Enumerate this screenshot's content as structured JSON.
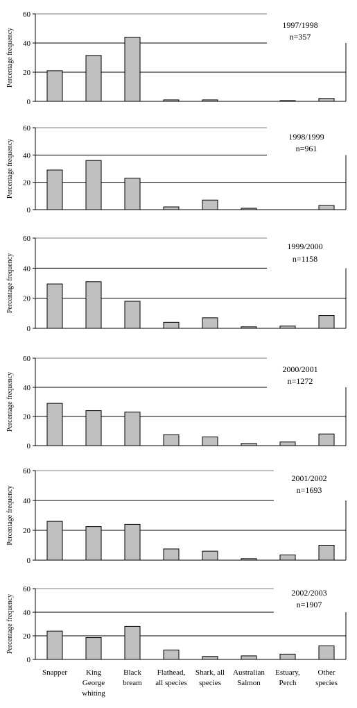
{
  "chart_data": [
    {
      "type": "bar",
      "title": "",
      "annotation": [
        "1997/1998",
        "n=357"
      ],
      "ylabel": "Percentage frequency",
      "ylim": [
        0,
        60
      ],
      "yticks": [
        0,
        20,
        40,
        60
      ],
      "grid": "horizontal",
      "bar_color": "#c0c0c0",
      "values": [
        21,
        31.5,
        44,
        1,
        1,
        0,
        0.5,
        2
      ]
    },
    {
      "type": "bar",
      "title": "",
      "annotation": [
        "1998/1999",
        "n=961"
      ],
      "ylabel": "Percentage frequency",
      "ylim": [
        0,
        60
      ],
      "yticks": [
        0,
        20,
        40,
        60
      ],
      "grid": "horizontal",
      "bar_color": "#c0c0c0",
      "values": [
        29,
        36,
        23,
        2,
        7,
        1,
        0,
        3
      ]
    },
    {
      "type": "bar",
      "title": "",
      "annotation": [
        "1999/2000",
        "n=1158"
      ],
      "ylabel": "Percentage frequency",
      "ylim": [
        0,
        60
      ],
      "yticks": [
        0,
        20,
        40,
        60
      ],
      "grid": "horizontal",
      "bar_color": "#c0c0c0",
      "values": [
        29.5,
        31,
        18,
        4,
        7,
        1,
        1.5,
        8.5
      ]
    },
    {
      "type": "bar",
      "title": "",
      "annotation": [
        "2000/2001",
        "n=1272"
      ],
      "ylabel": "Percentage frequency",
      "ylim": [
        0,
        60
      ],
      "yticks": [
        0,
        20,
        40,
        60
      ],
      "grid": "horizontal",
      "bar_color": "#c0c0c0",
      "values": [
        29,
        24,
        23,
        7.5,
        6,
        1.5,
        2.5,
        8
      ]
    },
    {
      "type": "bar",
      "title": "",
      "annotation": [
        "2001/2002",
        "n=1693"
      ],
      "ylabel": "Percentage frequency",
      "ylim": [
        0,
        60
      ],
      "yticks": [
        0,
        20,
        40,
        60
      ],
      "grid": "horizontal",
      "bar_color": "#c0c0c0",
      "values": [
        26,
        22.5,
        24,
        7.5,
        6,
        1,
        3.5,
        10
      ]
    },
    {
      "type": "bar",
      "title": "",
      "annotation": [
        "2002/2003",
        "n=1907"
      ],
      "ylabel": "Percentage frequency",
      "ylim": [
        0,
        60
      ],
      "yticks": [
        0,
        20,
        40,
        60
      ],
      "grid": "horizontal",
      "bar_color": "#c0c0c0",
      "values": [
        24,
        18.5,
        28,
        8,
        2.5,
        3,
        4.5,
        11.5
      ]
    }
  ],
  "categories": [
    [
      "Snapper"
    ],
    [
      "King",
      "George",
      "whiting"
    ],
    [
      "Black",
      "bream"
    ],
    [
      "Flathead,",
      "all species"
    ],
    [
      "Shark, all",
      "species"
    ],
    [
      "Australian",
      "Salmon"
    ],
    [
      "Estuary,",
      "Perch"
    ],
    [
      "Other",
      "species"
    ]
  ]
}
